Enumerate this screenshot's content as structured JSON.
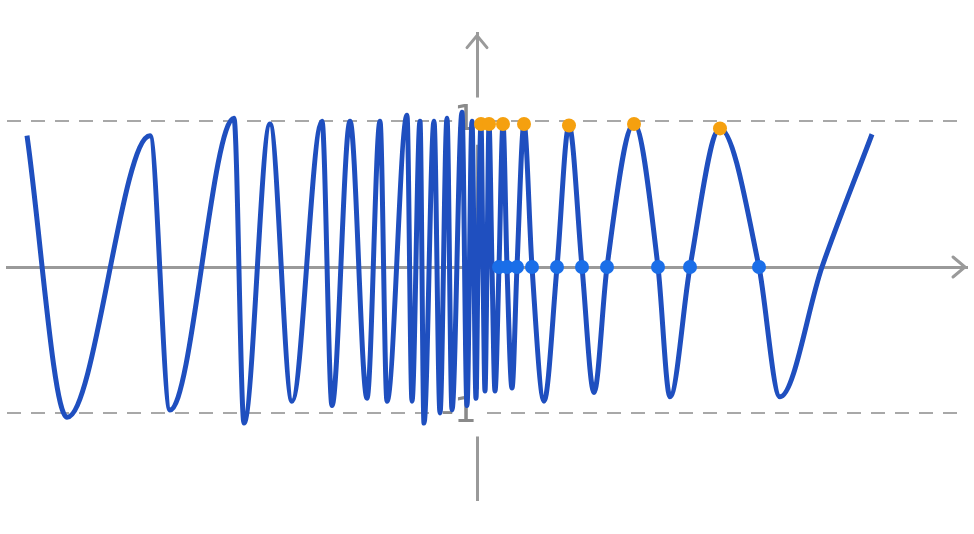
{
  "chart_data": {
    "type": "line",
    "xlim": [
      -470,
      490
    ],
    "ylim": [
      -1.6,
      1.6
    ],
    "yticks": [
      -1,
      1
    ],
    "grid": true,
    "tick_labels": "y",
    "series": [
      {
        "type": "line",
        "color": "#1f4fbf",
        "line_style": "solid",
        "marker": "none",
        "x": [
          -450,
          -410,
          -327,
          -307,
          -243,
          -233,
          -207,
          -185,
          -155,
          -145,
          -127,
          -110,
          -97,
          -90,
          -70,
          -65,
          -57,
          -53,
          -43,
          -37,
          -30,
          -25,
          -15,
          -10,
          -5,
          -1,
          1,
          4,
          6,
          8,
          10,
          12,
          15,
          18,
          22,
          26,
          30,
          35,
          40,
          47,
          55,
          67,
          80,
          92,
          105,
          117,
          130,
          157,
          181,
          193,
          213,
          243,
          282,
          303,
          345,
          395
        ],
        "values": [
          0.9,
          -1.03,
          0.9,
          -0.98,
          1.02,
          -1.07,
          0.98,
          -0.92,
          1.0,
          -0.95,
          1.0,
          -0.9,
          1.0,
          -0.92,
          1.04,
          -0.92,
          1.0,
          -1.07,
          1.0,
          -1.0,
          1.02,
          -0.98,
          1.06,
          -0.95,
          1.0,
          -0.9,
          0,
          0.98,
          0,
          -0.85,
          0,
          0.98,
          0,
          -0.85,
          0,
          0.98,
          0,
          -0.83,
          0,
          0.98,
          0,
          -0.92,
          0,
          0.97,
          0,
          -0.86,
          0,
          0.98,
          0,
          -0.89,
          0,
          0.95,
          0,
          -0.89,
          0,
          0.91
        ]
      },
      {
        "type": "scatter",
        "color": "#f5a00f",
        "marker": "circle",
        "x": [
          4,
          12,
          26,
          47,
          92,
          157,
          243
        ],
        "values": [
          0.98,
          0.98,
          0.98,
          0.98,
          0.97,
          0.98,
          0.95
        ]
      },
      {
        "type": "scatter",
        "color": "#1a6ee8",
        "marker": "circle",
        "x": [
          22,
          30,
          40,
          55,
          80,
          105,
          130,
          181,
          213,
          282
        ],
        "values": [
          0,
          0,
          0,
          0,
          0,
          0,
          0,
          0,
          0,
          0
        ]
      }
    ]
  }
}
